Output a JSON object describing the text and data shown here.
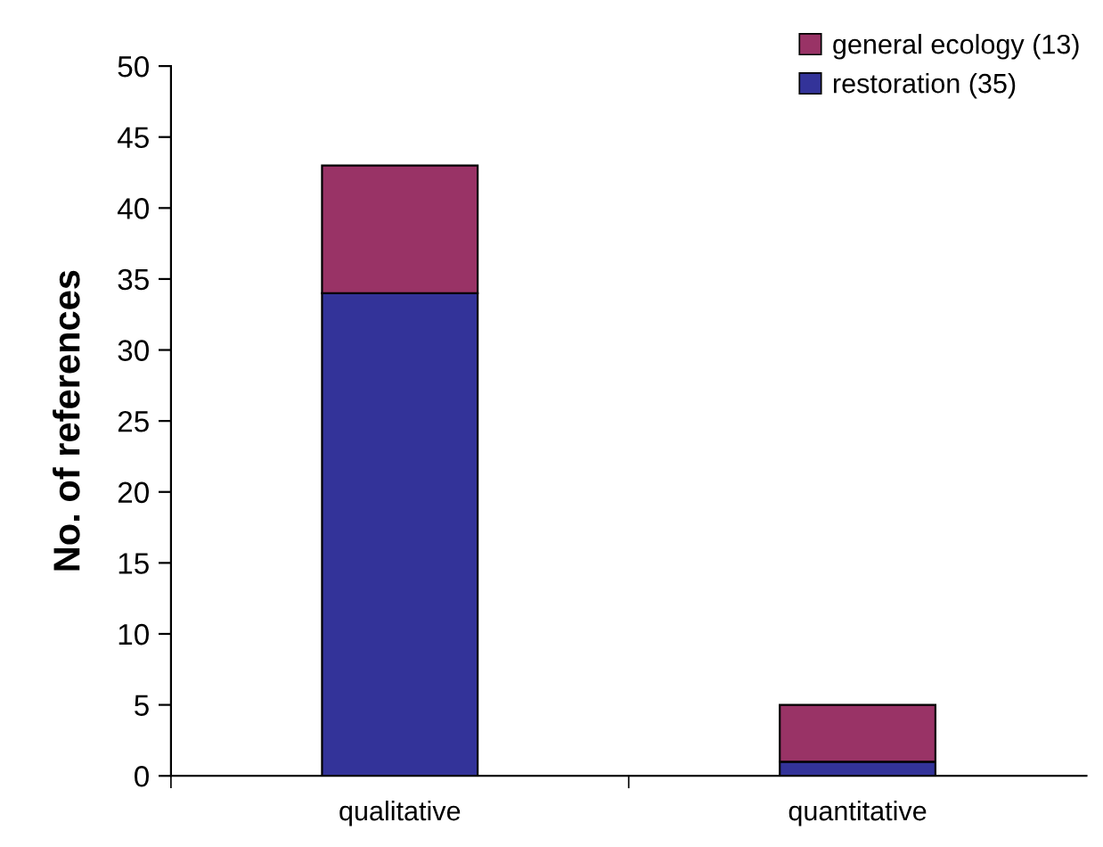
{
  "chart_data": {
    "type": "bar",
    "stacked": true,
    "ylabel": "No. of references",
    "categories": [
      "qualitative",
      "quantitative"
    ],
    "series": [
      {
        "name": "restoration (35)",
        "color": "#333399",
        "values": [
          34,
          1
        ]
      },
      {
        "name": "general ecology (13)",
        "color": "#993366",
        "values": [
          9,
          4
        ]
      }
    ],
    "ylim": [
      0,
      50
    ],
    "yticks": [
      0,
      5,
      10,
      15,
      20,
      25,
      30,
      35,
      40,
      45,
      50
    ],
    "grid": false,
    "legend": "top right"
  }
}
